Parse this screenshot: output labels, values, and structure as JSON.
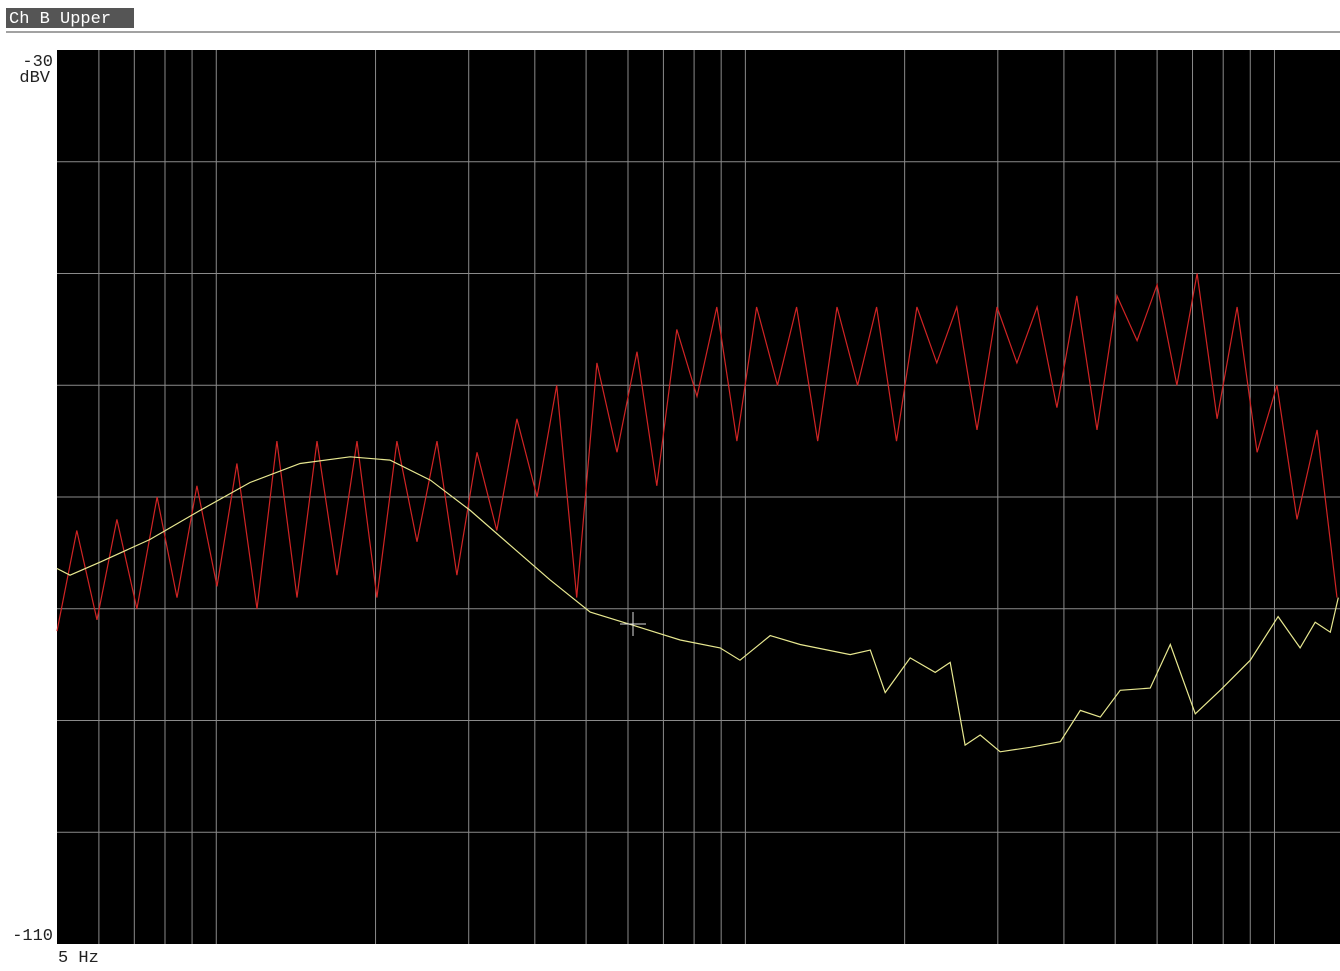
{
  "chart_data": {
    "type": "line",
    "title": "Ch B Upper",
    "y_label": "dBV",
    "log_x": true,
    "grid": true,
    "xlim": [
      5,
      1330
    ],
    "ylim": [
      -110,
      -30
    ],
    "xticks": [
      {
        "value": 5,
        "label": "5 Hz"
      }
    ],
    "yticks": [
      -30,
      -110
    ],
    "xgrid": [
      6,
      7,
      8,
      9,
      10,
      20,
      30,
      40,
      50,
      60,
      70,
      80,
      90,
      100,
      200,
      300,
      400,
      500,
      600,
      700,
      800,
      900,
      1000
    ],
    "ygrid": [
      -40,
      -50,
      -60,
      -70,
      -80,
      -90,
      -100
    ],
    "series": [
      {
        "color": "#d02424",
        "x": [
          5,
          5.45,
          5.95,
          6.49,
          7.08,
          7.73,
          8.43,
          9.19,
          10.03,
          10.94,
          11.94,
          13.02,
          14.21,
          15.5,
          16.91,
          18.45,
          20.12,
          21.95,
          23.95,
          26.13,
          28.5,
          31.1,
          33.9,
          37,
          40.4,
          44,
          48,
          52.4,
          57.2,
          62.4,
          68,
          74.2,
          81,
          88.3,
          96.4,
          105,
          115,
          125,
          137,
          149,
          163,
          177,
          193,
          211,
          230,
          251,
          274,
          299,
          326,
          356,
          388,
          423,
          462,
          504,
          550,
          600,
          654,
          714,
          779,
          850,
          927,
          1011,
          1103,
          1204,
          1313
        ],
        "values": [
          -82,
          -73,
          -81,
          -72,
          -80,
          -70,
          -79,
          -69,
          -78,
          -67,
          -80,
          -65,
          -79,
          -65,
          -77,
          -65,
          -79,
          -65,
          -74,
          -65,
          -77,
          -66,
          -73,
          -63,
          -70,
          -60,
          -79,
          -58,
          -66,
          -57,
          -69,
          -55,
          -61,
          -53,
          -65,
          -53,
          -60,
          -53,
          -65,
          -53,
          -60,
          -53,
          -65,
          -53,
          -58,
          -53,
          -64,
          -53,
          -58,
          -53,
          -62,
          -52,
          -64,
          -52,
          -56,
          -51,
          -60,
          -50,
          -63,
          -53,
          -66,
          -60,
          -72,
          -64,
          -79
        ]
      },
      {
        "color": "#e8e890",
        "x": [
          5,
          5.29,
          6.05,
          7.49,
          9.32,
          11.58,
          14.4,
          17.9,
          21.3,
          25.4,
          30.2,
          35.9,
          42.7,
          50.9,
          60.6,
          75.3,
          89.6,
          97.7,
          111.4,
          126.9,
          157.8,
          172.2,
          183.8,
          204.9,
          228.4,
          243.8,
          260.2,
          277.8,
          303.1,
          345.4,
          393.7,
          429.5,
          468.6,
          511.1,
          582.4,
          635.5,
          708.5,
          789.8,
          900.1,
          1016,
          1118,
          1194,
          1275,
          1320
        ],
        "values": [
          -76.4,
          -77.0,
          -75.8,
          -73.8,
          -71.2,
          -68.7,
          -67.0,
          -66.4,
          -66.7,
          -68.5,
          -71.2,
          -74.3,
          -77.4,
          -80.3,
          -81.4,
          -82.8,
          -83.5,
          -84.6,
          -82.4,
          -83.2,
          -84.1,
          -83.7,
          -87.5,
          -84.4,
          -85.7,
          -84.8,
          -92.2,
          -91.3,
          -92.8,
          -92.4,
          -91.9,
          -89.1,
          -89.7,
          -87.3,
          -87.1,
          -83.2,
          -89.4,
          -87.3,
          -84.6,
          -80.7,
          -83.5,
          -81.2,
          -82.1,
          -79.0
        ]
      }
    ]
  }
}
